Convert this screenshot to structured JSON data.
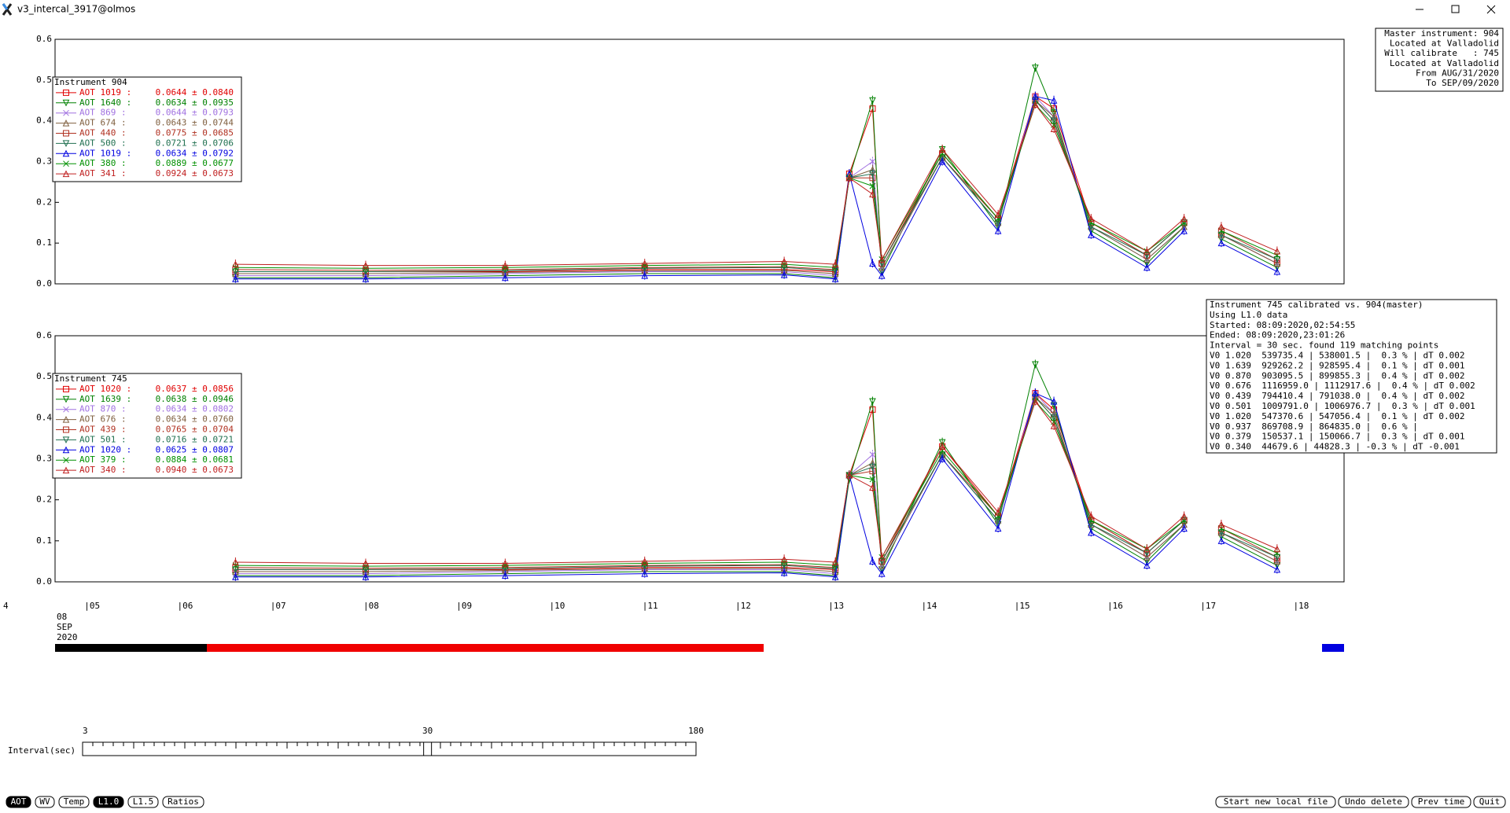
{
  "window": {
    "title": "v3_intercal_3917@olmos"
  },
  "master_info": [
    "Master instrument: 904",
    "Located at Valladolid",
    "Will calibrate   : 745",
    "Located at Valladolid",
    "From AUG/31/2020",
    "To SEP/09/2020"
  ],
  "calib_info": [
    "Instrument 745 calibrated vs. 904(master)",
    "Using L1.0 data",
    "Started: 08:09:2020,02:54:55",
    "Ended: 08:09:2020,23:01:26",
    "Interval = 30 sec. found 119 matching points",
    "V0 1.020  539735.4 | 538001.5 |  0.3 % | dT 0.002",
    "V0 1.639  929262.2 | 928595.4 |  0.1 % | dT 0.001",
    "V0 0.870  903095.5 | 899855.3 |  0.4 % | dT 0.002",
    "V0 0.676  1116959.0 | 1112917.6 |  0.4 % | dT 0.002",
    "V0 0.439  794410.4 | 791038.0 |  0.4 % | dT 0.002",
    "V0 0.501  1009791.0 | 1006976.7 |  0.3 % | dT 0.001",
    "V0 1.020  547370.6 | 547056.4 |  0.1 % | dT 0.002",
    "V0 0.937  869708.9 | 864835.0 |  0.6 % |",
    "V0 0.379  150537.1 | 150066.7 |  0.3 % | dT 0.001",
    "V0 0.340  44679.6 | 44828.3 | -0.3 % | dT -0.001"
  ],
  "chart_data": [
    {
      "type": "line",
      "legend_title": "Instrument 904",
      "x": [
        6.6,
        8.0,
        9.5,
        11.0,
        12.5,
        13.05,
        13.2,
        13.45,
        13.55,
        14.2,
        14.8,
        15.2,
        15.4,
        15.8,
        16.4,
        16.8,
        17.0,
        17.2,
        17.8
      ],
      "xlim": [
        4.66,
        18.52
      ],
      "ylim": [
        0,
        0.6
      ],
      "yticks": [
        {
          "value": 0,
          "label": "0.0"
        },
        0.1,
        0.2,
        0.3,
        0.4,
        0.5,
        0.6
      ],
      "series": [
        {
          "name": "AOT 1019 :",
          "stat": "0.0644 ± 0.0840",
          "color": "#e00000",
          "values": [
            0.03,
            0.03,
            0.03,
            0.035,
            0.035,
            0.03,
            0.27,
            0.43,
            0.05,
            0.32,
            0.16,
            0.46,
            0.43,
            0.15,
            0.07,
            0.15,
            null,
            0.12,
            0.05
          ]
        },
        {
          "name": "AOT 1640 :",
          "stat": "0.0634 ± 0.0935",
          "color": "#008000",
          "values": [
            0.015,
            0.015,
            0.02,
            0.025,
            0.025,
            0.015,
            0.26,
            0.45,
            0.03,
            0.33,
            0.14,
            0.53,
            0.42,
            0.13,
            0.05,
            0.14,
            null,
            0.11,
            0.04
          ]
        },
        {
          "name": "AOT 869 :",
          "stat": "0.0644 ± 0.0793",
          "color": "#a070e0",
          "values": [
            0.02,
            0.02,
            0.025,
            0.03,
            0.03,
            0.02,
            0.26,
            0.3,
            0.04,
            0.31,
            0.15,
            0.46,
            0.41,
            0.14,
            0.06,
            0.14,
            null,
            0.12,
            0.05
          ]
        },
        {
          "name": "AOT 674 :",
          "stat": "0.0643 ± 0.0744",
          "color": "#806040",
          "values": [
            0.025,
            0.025,
            0.028,
            0.032,
            0.033,
            0.025,
            0.26,
            0.28,
            0.04,
            0.31,
            0.15,
            0.45,
            0.41,
            0.14,
            0.06,
            0.14,
            null,
            0.12,
            0.05
          ]
        },
        {
          "name": "AOT 440 :",
          "stat": "0.0775 ± 0.0685",
          "color": "#b03020",
          "values": [
            0.035,
            0.033,
            0.035,
            0.04,
            0.042,
            0.035,
            0.26,
            0.26,
            0.05,
            0.31,
            0.16,
            0.45,
            0.4,
            0.15,
            0.07,
            0.15,
            null,
            0.13,
            0.06
          ]
        },
        {
          "name": "AOT 500 :",
          "stat": "0.0721 ± 0.0706",
          "color": "#207050",
          "values": [
            0.03,
            0.03,
            0.032,
            0.038,
            0.04,
            0.032,
            0.26,
            0.27,
            0.05,
            0.31,
            0.15,
            0.45,
            0.4,
            0.14,
            0.07,
            0.15,
            null,
            0.12,
            0.06
          ]
        },
        {
          "name": "AOT 1019 :",
          "stat": "0.0634 ± 0.0792",
          "color": "#0000e0",
          "values": [
            0.012,
            0.012,
            0.015,
            0.02,
            0.022,
            0.012,
            0.27,
            0.05,
            0.02,
            0.3,
            0.13,
            0.46,
            0.45,
            0.12,
            0.04,
            0.13,
            null,
            0.1,
            0.03
          ]
        },
        {
          "name": "AOT 380 :",
          "stat": "0.0889 ± 0.0677",
          "color": "#009000",
          "values": [
            0.04,
            0.038,
            0.04,
            0.045,
            0.048,
            0.04,
            0.26,
            0.24,
            0.06,
            0.32,
            0.16,
            0.44,
            0.39,
            0.15,
            0.08,
            0.15,
            null,
            0.13,
            0.07
          ]
        },
        {
          "name": "AOT 341 :",
          "stat": "0.0924 ± 0.0673",
          "color": "#c02020",
          "values": [
            0.048,
            0.045,
            0.045,
            0.05,
            0.055,
            0.048,
            0.26,
            0.22,
            0.06,
            0.33,
            0.17,
            0.44,
            0.38,
            0.16,
            0.08,
            0.16,
            null,
            0.14,
            0.08
          ]
        }
      ]
    },
    {
      "type": "line",
      "legend_title": "Instrument 745",
      "x": [
        6.6,
        8.0,
        9.5,
        11.0,
        12.5,
        13.05,
        13.2,
        13.45,
        13.55,
        14.2,
        14.8,
        15.2,
        15.4,
        15.8,
        16.4,
        16.8,
        17.0,
        17.2,
        17.8
      ],
      "xlim": [
        4.66,
        18.52
      ],
      "ylim": [
        0,
        0.6
      ],
      "yticks": [
        {
          "value": 0,
          "label": "0.0"
        },
        0.1,
        0.2,
        0.3,
        0.4,
        0.5,
        0.6
      ],
      "xticks": [
        {
          "value": 4,
          "label": "4"
        },
        {
          "value": 5,
          "label": "|05"
        },
        {
          "value": 6,
          "label": "|06"
        },
        {
          "value": 7,
          "label": "|07"
        },
        {
          "value": 8,
          "label": "|08"
        },
        {
          "value": 9,
          "label": "|09"
        },
        {
          "value": 10,
          "label": "|10"
        },
        {
          "value": 11,
          "label": "|11"
        },
        {
          "value": 12,
          "label": "|12"
        },
        {
          "value": 13,
          "label": "|13"
        },
        {
          "value": 14,
          "label": "|14"
        },
        {
          "value": 15,
          "label": "|15"
        },
        {
          "value": 16,
          "label": "|16"
        },
        {
          "value": 17,
          "label": "|17"
        },
        {
          "value": 18,
          "label": "|18"
        }
      ],
      "date_label": [
        "08",
        "SEP",
        "2020"
      ],
      "series": [
        {
          "name": "AOT 1020 :",
          "stat": "0.0637 ± 0.0856",
          "color": "#e00000",
          "values": [
            0.03,
            0.03,
            0.03,
            0.035,
            0.035,
            0.03,
            0.26,
            0.42,
            0.05,
            0.33,
            0.16,
            0.46,
            0.42,
            0.15,
            0.07,
            0.15,
            null,
            0.12,
            0.05
          ]
        },
        {
          "name": "AOT 1639 :",
          "stat": "0.0638 ± 0.0946",
          "color": "#008000",
          "values": [
            0.015,
            0.015,
            0.02,
            0.025,
            0.025,
            0.015,
            0.25,
            0.44,
            0.03,
            0.34,
            0.14,
            0.53,
            0.43,
            0.13,
            0.05,
            0.14,
            null,
            0.11,
            0.04
          ]
        },
        {
          "name": "AOT 870 :",
          "stat": "0.0634 ± 0.0802",
          "color": "#a070e0",
          "values": [
            0.02,
            0.02,
            0.025,
            0.03,
            0.03,
            0.02,
            0.26,
            0.31,
            0.04,
            0.31,
            0.15,
            0.46,
            0.41,
            0.14,
            0.06,
            0.14,
            null,
            0.12,
            0.05
          ]
        },
        {
          "name": "AOT 676 :",
          "stat": "0.0634 ± 0.0760",
          "color": "#806040",
          "values": [
            0.025,
            0.025,
            0.028,
            0.032,
            0.033,
            0.025,
            0.26,
            0.29,
            0.04,
            0.31,
            0.15,
            0.45,
            0.41,
            0.14,
            0.06,
            0.14,
            null,
            0.12,
            0.05
          ]
        },
        {
          "name": "AOT 439 :",
          "stat": "0.0765 ± 0.0704",
          "color": "#b03020",
          "values": [
            0.035,
            0.033,
            0.035,
            0.04,
            0.042,
            0.035,
            0.26,
            0.27,
            0.05,
            0.31,
            0.16,
            0.45,
            0.4,
            0.15,
            0.07,
            0.15,
            null,
            0.13,
            0.06
          ]
        },
        {
          "name": "AOT 501 :",
          "stat": "0.0716 ± 0.0721",
          "color": "#207050",
          "values": [
            0.03,
            0.03,
            0.032,
            0.038,
            0.04,
            0.032,
            0.26,
            0.28,
            0.05,
            0.31,
            0.15,
            0.45,
            0.4,
            0.14,
            0.07,
            0.15,
            null,
            0.12,
            0.06
          ]
        },
        {
          "name": "AOT 1020 :",
          "stat": "0.0625 ± 0.0807",
          "color": "#0000e0",
          "values": [
            0.012,
            0.012,
            0.015,
            0.02,
            0.022,
            0.012,
            0.26,
            0.05,
            0.02,
            0.3,
            0.13,
            0.46,
            0.44,
            0.12,
            0.04,
            0.13,
            null,
            0.1,
            0.03
          ]
        },
        {
          "name": "AOT 379 :",
          "stat": "0.0884 ± 0.0681",
          "color": "#009000",
          "values": [
            0.04,
            0.038,
            0.04,
            0.045,
            0.048,
            0.04,
            0.26,
            0.25,
            0.06,
            0.32,
            0.16,
            0.44,
            0.39,
            0.15,
            0.08,
            0.15,
            null,
            0.13,
            0.07
          ]
        },
        {
          "name": "AOT 340 :",
          "stat": "0.0940 ± 0.0673",
          "color": "#c02020",
          "values": [
            0.048,
            0.045,
            0.045,
            0.05,
            0.055,
            0.048,
            0.26,
            0.23,
            0.06,
            0.33,
            0.17,
            0.44,
            0.38,
            0.16,
            0.08,
            0.16,
            null,
            0.14,
            0.08
          ]
        }
      ]
    }
  ],
  "slider": {
    "label": "Interval(sec)",
    "ticks": [
      {
        "value": 3,
        "label": "3"
      },
      {
        "value": 30,
        "label": "30"
      },
      {
        "value": 180,
        "label": "180"
      }
    ],
    "value": 30
  },
  "buttons_left": [
    "AOT",
    "WV",
    "Temp",
    "L1.0",
    "L1.5",
    "Ratios"
  ],
  "buttons_right": [
    "Start new local file",
    "Undo delete",
    "Prev time",
    "Quit"
  ]
}
